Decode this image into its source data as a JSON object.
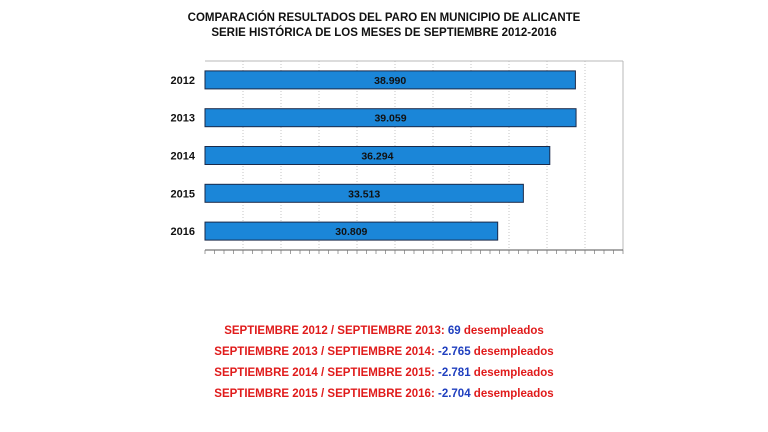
{
  "chart_data": {
    "type": "bar",
    "orientation": "horizontal",
    "title": "COMPARACIÓN RESULTADOS DEL PARO EN  MUNICIPIO DE ALICANTE",
    "subtitle": "SERIE HISTÓRICA DE LOS MESES DE SEPTIEMBRE 2012-2016",
    "categories": [
      "2012",
      "2013",
      "2014",
      "2015",
      "2016"
    ],
    "values": [
      38990,
      39059,
      36294,
      33513,
      30809
    ],
    "data_labels": [
      "38.990",
      "39.059",
      "36.294",
      "33.513",
      "30.809"
    ],
    "xlim": [
      0,
      44000
    ],
    "grid": true,
    "legend": "none",
    "bar_color": "#1b86d8"
  },
  "comparisons": [
    {
      "label": "SEPTIEMBRE 2012 / SEPTIEMBRE 2013:",
      "value": "69",
      "unit": "desempleados"
    },
    {
      "label": "SEPTIEMBRE 2013 / SEPTIEMBRE 2014:",
      "value": "-2.765",
      "unit": "desempleados"
    },
    {
      "label": "SEPTIEMBRE 2014 /  SEPTIEMBRE 2015:",
      "value": "-2.781",
      "unit": "desempleados"
    },
    {
      "label": "SEPTIEMBRE 2015 / SEPTIEMBRE 2016:",
      "value": "-2.704",
      "unit": "desempleados"
    }
  ],
  "colors": {
    "label": "#e01b1b",
    "value": "#1f3fbf",
    "grid": "#b8b8b8"
  }
}
